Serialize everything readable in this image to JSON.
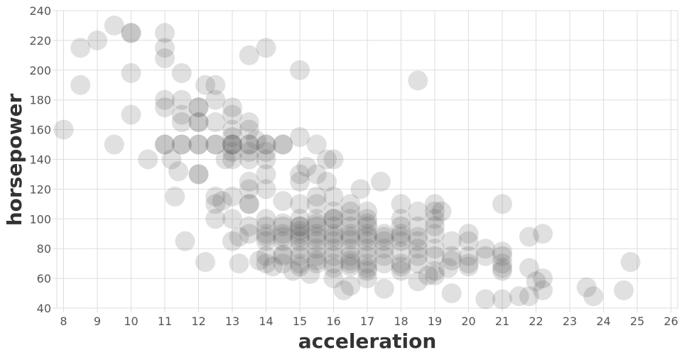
{
  "chart_data": {
    "type": "scatter",
    "xlabel": "acceleration",
    "ylabel": "horsepower",
    "xlim": [
      7.8,
      26.2
    ],
    "ylim": [
      40,
      240
    ],
    "x_ticks": [
      8,
      9,
      10,
      11,
      12,
      13,
      14,
      15,
      16,
      17,
      18,
      19,
      20,
      21,
      22,
      23,
      24,
      25,
      26
    ],
    "y_ticks": [
      40,
      60,
      80,
      100,
      120,
      140,
      160,
      180,
      200,
      220,
      240
    ],
    "grid": true,
    "marker_color": "#555555",
    "marker_opacity": 0.18,
    "points": [
      [
        8.0,
        160
      ],
      [
        8.5,
        215
      ],
      [
        8.5,
        190
      ],
      [
        9.0,
        220
      ],
      [
        9.5,
        230
      ],
      [
        9.5,
        150
      ],
      [
        10.0,
        225
      ],
      [
        10.0,
        225
      ],
      [
        10.0,
        198
      ],
      [
        10.0,
        170
      ],
      [
        10.5,
        140
      ],
      [
        11.0,
        225
      ],
      [
        11.0,
        215
      ],
      [
        11.0,
        208
      ],
      [
        11.0,
        180
      ],
      [
        11.0,
        175
      ],
      [
        11.0,
        150
      ],
      [
        11.0,
        150
      ],
      [
        11.2,
        140
      ],
      [
        11.3,
        115
      ],
      [
        11.4,
        132
      ],
      [
        11.5,
        198
      ],
      [
        11.5,
        180
      ],
      [
        11.5,
        170
      ],
      [
        11.5,
        165
      ],
      [
        11.5,
        150
      ],
      [
        11.5,
        150
      ],
      [
        11.6,
        85
      ],
      [
        12.0,
        175
      ],
      [
        12.0,
        175
      ],
      [
        12.0,
        165
      ],
      [
        12.0,
        165
      ],
      [
        12.0,
        150
      ],
      [
        12.0,
        150
      ],
      [
        12.0,
        130
      ],
      [
        12.0,
        130
      ],
      [
        12.2,
        71
      ],
      [
        12.2,
        190
      ],
      [
        12.5,
        190
      ],
      [
        12.5,
        180
      ],
      [
        12.5,
        165
      ],
      [
        12.5,
        150
      ],
      [
        12.5,
        150
      ],
      [
        12.5,
        115
      ],
      [
        12.5,
        110
      ],
      [
        12.5,
        100
      ],
      [
        12.7,
        112
      ],
      [
        12.8,
        140
      ],
      [
        13.0,
        175
      ],
      [
        13.0,
        170
      ],
      [
        13.0,
        160
      ],
      [
        13.0,
        155
      ],
      [
        13.0,
        150
      ],
      [
        13.0,
        150
      ],
      [
        13.0,
        150
      ],
      [
        13.0,
        145
      ],
      [
        13.0,
        140
      ],
      [
        13.0,
        115
      ],
      [
        13.0,
        100
      ],
      [
        13.0,
        85
      ],
      [
        13.2,
        88
      ],
      [
        13.2,
        70
      ],
      [
        13.5,
        210
      ],
      [
        13.5,
        165
      ],
      [
        13.5,
        160
      ],
      [
        13.5,
        150
      ],
      [
        13.5,
        150
      ],
      [
        13.5,
        145
      ],
      [
        13.5,
        140
      ],
      [
        13.5,
        125
      ],
      [
        13.5,
        120
      ],
      [
        13.5,
        110
      ],
      [
        13.5,
        110
      ],
      [
        13.5,
        95
      ],
      [
        13.5,
        90
      ],
      [
        13.7,
        153
      ],
      [
        13.8,
        72
      ],
      [
        14.0,
        215
      ],
      [
        14.0,
        150
      ],
      [
        14.0,
        150
      ],
      [
        14.0,
        145
      ],
      [
        14.0,
        140
      ],
      [
        14.0,
        130
      ],
      [
        14.0,
        120
      ],
      [
        14.0,
        100
      ],
      [
        14.0,
        95
      ],
      [
        14.0,
        90
      ],
      [
        14.0,
        88
      ],
      [
        14.0,
        85
      ],
      [
        14.0,
        75
      ],
      [
        14.0,
        70
      ],
      [
        14.2,
        68
      ],
      [
        14.5,
        150
      ],
      [
        14.5,
        150
      ],
      [
        14.5,
        112
      ],
      [
        14.5,
        97
      ],
      [
        14.5,
        95
      ],
      [
        14.5,
        90
      ],
      [
        14.5,
        88
      ],
      [
        14.5,
        85
      ],
      [
        14.5,
        76
      ],
      [
        14.5,
        75
      ],
      [
        14.5,
        70
      ],
      [
        14.8,
        65
      ],
      [
        15.0,
        200
      ],
      [
        15.0,
        155
      ],
      [
        15.0,
        130
      ],
      [
        15.0,
        125
      ],
      [
        15.0,
        110
      ],
      [
        15.0,
        100
      ],
      [
        15.0,
        95
      ],
      [
        15.0,
        95
      ],
      [
        15.0,
        92
      ],
      [
        15.0,
        90
      ],
      [
        15.0,
        88
      ],
      [
        15.0,
        85
      ],
      [
        15.0,
        80
      ],
      [
        15.0,
        75
      ],
      [
        15.0,
        70
      ],
      [
        15.0,
        68
      ],
      [
        15.2,
        135
      ],
      [
        15.3,
        63
      ],
      [
        15.5,
        150
      ],
      [
        15.5,
        130
      ],
      [
        15.5,
        115
      ],
      [
        15.5,
        110
      ],
      [
        15.5,
        100
      ],
      [
        15.5,
        97
      ],
      [
        15.5,
        95
      ],
      [
        15.5,
        90
      ],
      [
        15.5,
        88
      ],
      [
        15.5,
        85
      ],
      [
        15.5,
        80
      ],
      [
        15.5,
        75
      ],
      [
        15.5,
        72
      ],
      [
        15.5,
        70
      ],
      [
        15.8,
        140
      ],
      [
        15.8,
        125
      ],
      [
        16.0,
        140
      ],
      [
        16.0,
        115
      ],
      [
        16.0,
        105
      ],
      [
        16.0,
        100
      ],
      [
        16.0,
        100
      ],
      [
        16.0,
        95
      ],
      [
        16.0,
        90
      ],
      [
        16.0,
        88
      ],
      [
        16.0,
        85
      ],
      [
        16.0,
        80
      ],
      [
        16.0,
        75
      ],
      [
        16.0,
        70
      ],
      [
        16.0,
        67
      ],
      [
        16.0,
        60
      ],
      [
        16.3,
        52
      ],
      [
        16.5,
        110
      ],
      [
        16.5,
        105
      ],
      [
        16.5,
        100
      ],
      [
        16.5,
        95
      ],
      [
        16.5,
        90
      ],
      [
        16.5,
        88
      ],
      [
        16.5,
        86
      ],
      [
        16.5,
        80
      ],
      [
        16.5,
        75
      ],
      [
        16.5,
        72
      ],
      [
        16.5,
        70
      ],
      [
        16.5,
        68
      ],
      [
        16.5,
        55
      ],
      [
        16.8,
        120
      ],
      [
        17.0,
        105
      ],
      [
        17.0,
        100
      ],
      [
        17.0,
        97
      ],
      [
        17.0,
        95
      ],
      [
        17.0,
        90
      ],
      [
        17.0,
        88
      ],
      [
        17.0,
        85
      ],
      [
        17.0,
        80
      ],
      [
        17.0,
        75
      ],
      [
        17.0,
        70
      ],
      [
        17.0,
        67
      ],
      [
        17.0,
        65
      ],
      [
        17.0,
        60
      ],
      [
        17.4,
        125
      ],
      [
        17.5,
        90
      ],
      [
        17.5,
        88
      ],
      [
        17.5,
        85
      ],
      [
        17.5,
        80
      ],
      [
        17.5,
        75
      ],
      [
        17.5,
        70
      ],
      [
        17.5,
        53
      ],
      [
        18.0,
        110
      ],
      [
        18.0,
        100
      ],
      [
        18.0,
        95
      ],
      [
        18.0,
        90
      ],
      [
        18.0,
        88
      ],
      [
        18.0,
        85
      ],
      [
        18.0,
        78
      ],
      [
        18.0,
        70
      ],
      [
        18.0,
        68
      ],
      [
        18.0,
        65
      ],
      [
        18.5,
        193
      ],
      [
        18.5,
        105
      ],
      [
        18.5,
        95
      ],
      [
        18.5,
        88
      ],
      [
        18.5,
        85
      ],
      [
        18.5,
        80
      ],
      [
        18.5,
        75
      ],
      [
        18.5,
        70
      ],
      [
        18.5,
        58
      ],
      [
        18.8,
        62
      ],
      [
        19.0,
        110
      ],
      [
        19.0,
        105
      ],
      [
        19.0,
        100
      ],
      [
        19.0,
        95
      ],
      [
        19.0,
        90
      ],
      [
        19.0,
        80
      ],
      [
        19.0,
        75
      ],
      [
        19.0,
        65
      ],
      [
        19.0,
        62
      ],
      [
        19.2,
        105
      ],
      [
        19.4,
        67
      ],
      [
        19.5,
        85
      ],
      [
        19.5,
        75
      ],
      [
        19.5,
        72
      ],
      [
        19.5,
        50
      ],
      [
        20.0,
        90
      ],
      [
        20.0,
        85
      ],
      [
        20.0,
        75
      ],
      [
        20.0,
        70
      ],
      [
        20.0,
        68
      ],
      [
        20.5,
        80
      ],
      [
        20.5,
        75
      ],
      [
        20.5,
        46
      ],
      [
        21.0,
        110
      ],
      [
        21.0,
        78
      ],
      [
        21.0,
        75
      ],
      [
        21.0,
        70
      ],
      [
        21.0,
        67
      ],
      [
        21.0,
        65
      ],
      [
        21.0,
        46
      ],
      [
        21.5,
        48
      ],
      [
        21.8,
        48
      ],
      [
        21.8,
        88
      ],
      [
        21.8,
        67
      ],
      [
        22.0,
        58
      ],
      [
        22.2,
        90
      ],
      [
        22.2,
        60
      ],
      [
        22.2,
        52
      ],
      [
        23.5,
        54
      ],
      [
        23.7,
        48
      ],
      [
        24.6,
        52
      ],
      [
        24.8,
        71
      ]
    ]
  }
}
